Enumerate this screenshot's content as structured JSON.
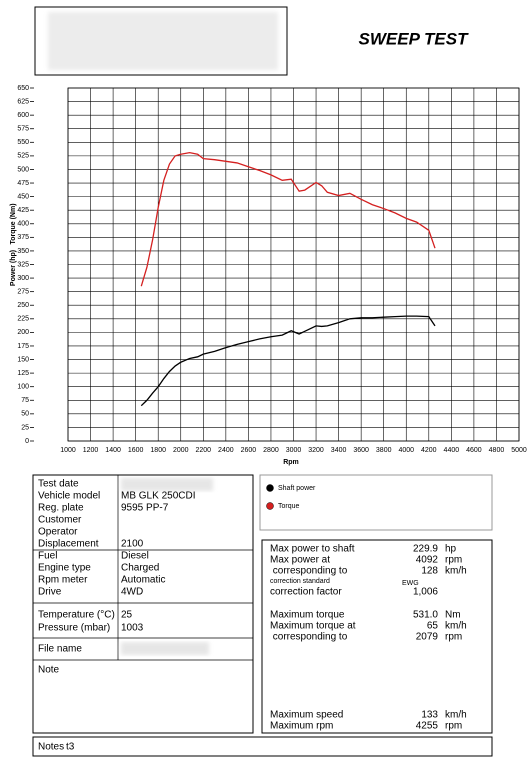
{
  "header": {
    "title": "SWEEP TEST"
  },
  "chart_data": {
    "type": "line",
    "x_label": "Rpm",
    "y_labels": [
      "Power (hp)",
      "Torque (Nm)"
    ],
    "x": [
      1650,
      1700,
      1750,
      1800,
      1850,
      1900,
      1950,
      2000,
      2079,
      2150,
      2200,
      2300,
      2400,
      2500,
      2600,
      2700,
      2800,
      2900,
      2980,
      3050,
      3100,
      3200,
      3250,
      3300,
      3400,
      3500,
      3600,
      3700,
      3800,
      3900,
      4000,
      4092,
      4200,
      4255
    ],
    "series": [
      {
        "name": "Shaft power",
        "color": "#000000",
        "values": [
          65,
          75,
          88,
          100,
          115,
          128,
          138,
          145,
          152,
          155,
          160,
          165,
          172,
          178,
          183,
          188,
          192,
          195,
          203,
          197,
          202,
          212,
          211,
          212,
          218,
          225,
          227,
          227,
          228,
          229,
          230,
          229.9,
          229,
          212
        ]
      },
      {
        "name": "Torque",
        "color": "#d42020",
        "values": [
          285,
          320,
          370,
          430,
          480,
          510,
          525,
          528,
          531,
          528,
          520,
          518,
          515,
          512,
          505,
          498,
          490,
          480,
          482,
          460,
          462,
          476,
          470,
          458,
          452,
          456,
          445,
          435,
          428,
          420,
          410,
          403,
          388,
          355
        ]
      }
    ],
    "xlim": [
      1000,
      5000
    ],
    "ylim": [
      0,
      650
    ],
    "xticks": [
      1000,
      1200,
      1400,
      1600,
      1800,
      2000,
      2200,
      2400,
      2600,
      2800,
      3000,
      3200,
      3400,
      3600,
      3800,
      4000,
      4200,
      4400,
      4600,
      4800,
      5000
    ],
    "yticks": [
      0,
      25,
      50,
      75,
      100,
      125,
      150,
      175,
      200,
      225,
      250,
      275,
      300,
      325,
      350,
      375,
      400,
      425,
      450,
      475,
      500,
      525,
      550,
      575,
      600,
      625,
      650
    ],
    "grid": true
  },
  "vehicle_info": [
    [
      "Test date"
    ],
    [
      "Vehicle model",
      "MB GLK 250CDI"
    ],
    [
      "Reg. plate",
      "9595 PP-7"
    ],
    [
      "Customer"
    ],
    [
      "Operator"
    ],
    [
      "Displacement",
      "2100"
    ],
    [
      "Fuel",
      "Diesel"
    ],
    [
      "Engine type",
      "Charged"
    ],
    [
      "Rpm meter",
      "Automatic"
    ],
    [
      "Drive",
      "4WD"
    ],
    [
      "Temperature (°C)",
      "25"
    ],
    [
      "Pressure (mbar)",
      "1003"
    ],
    [
      "File name"
    ],
    [
      "Note"
    ]
  ],
  "results": [
    [
      "Max power to shaft",
      "229.9",
      "hp"
    ],
    [
      "Max power at",
      "4092",
      "rpm"
    ],
    [
      " corresponding to",
      "128",
      "km/h"
    ],
    [
      "correction standard",
      "EWG"
    ],
    [
      "correction factor",
      "1,006"
    ],
    [
      "Maximum torque",
      "531.0",
      "Nm"
    ],
    [
      "Maximum torque at",
      "65",
      "km/h"
    ],
    [
      " corresponding to",
      "2079",
      "rpm"
    ],
    [
      "Maximum speed",
      "133",
      "km/h"
    ],
    [
      "Maximum rpm",
      "4255",
      "rpm"
    ]
  ],
  "notes": {
    "label": "Notes",
    "value": "t3"
  }
}
